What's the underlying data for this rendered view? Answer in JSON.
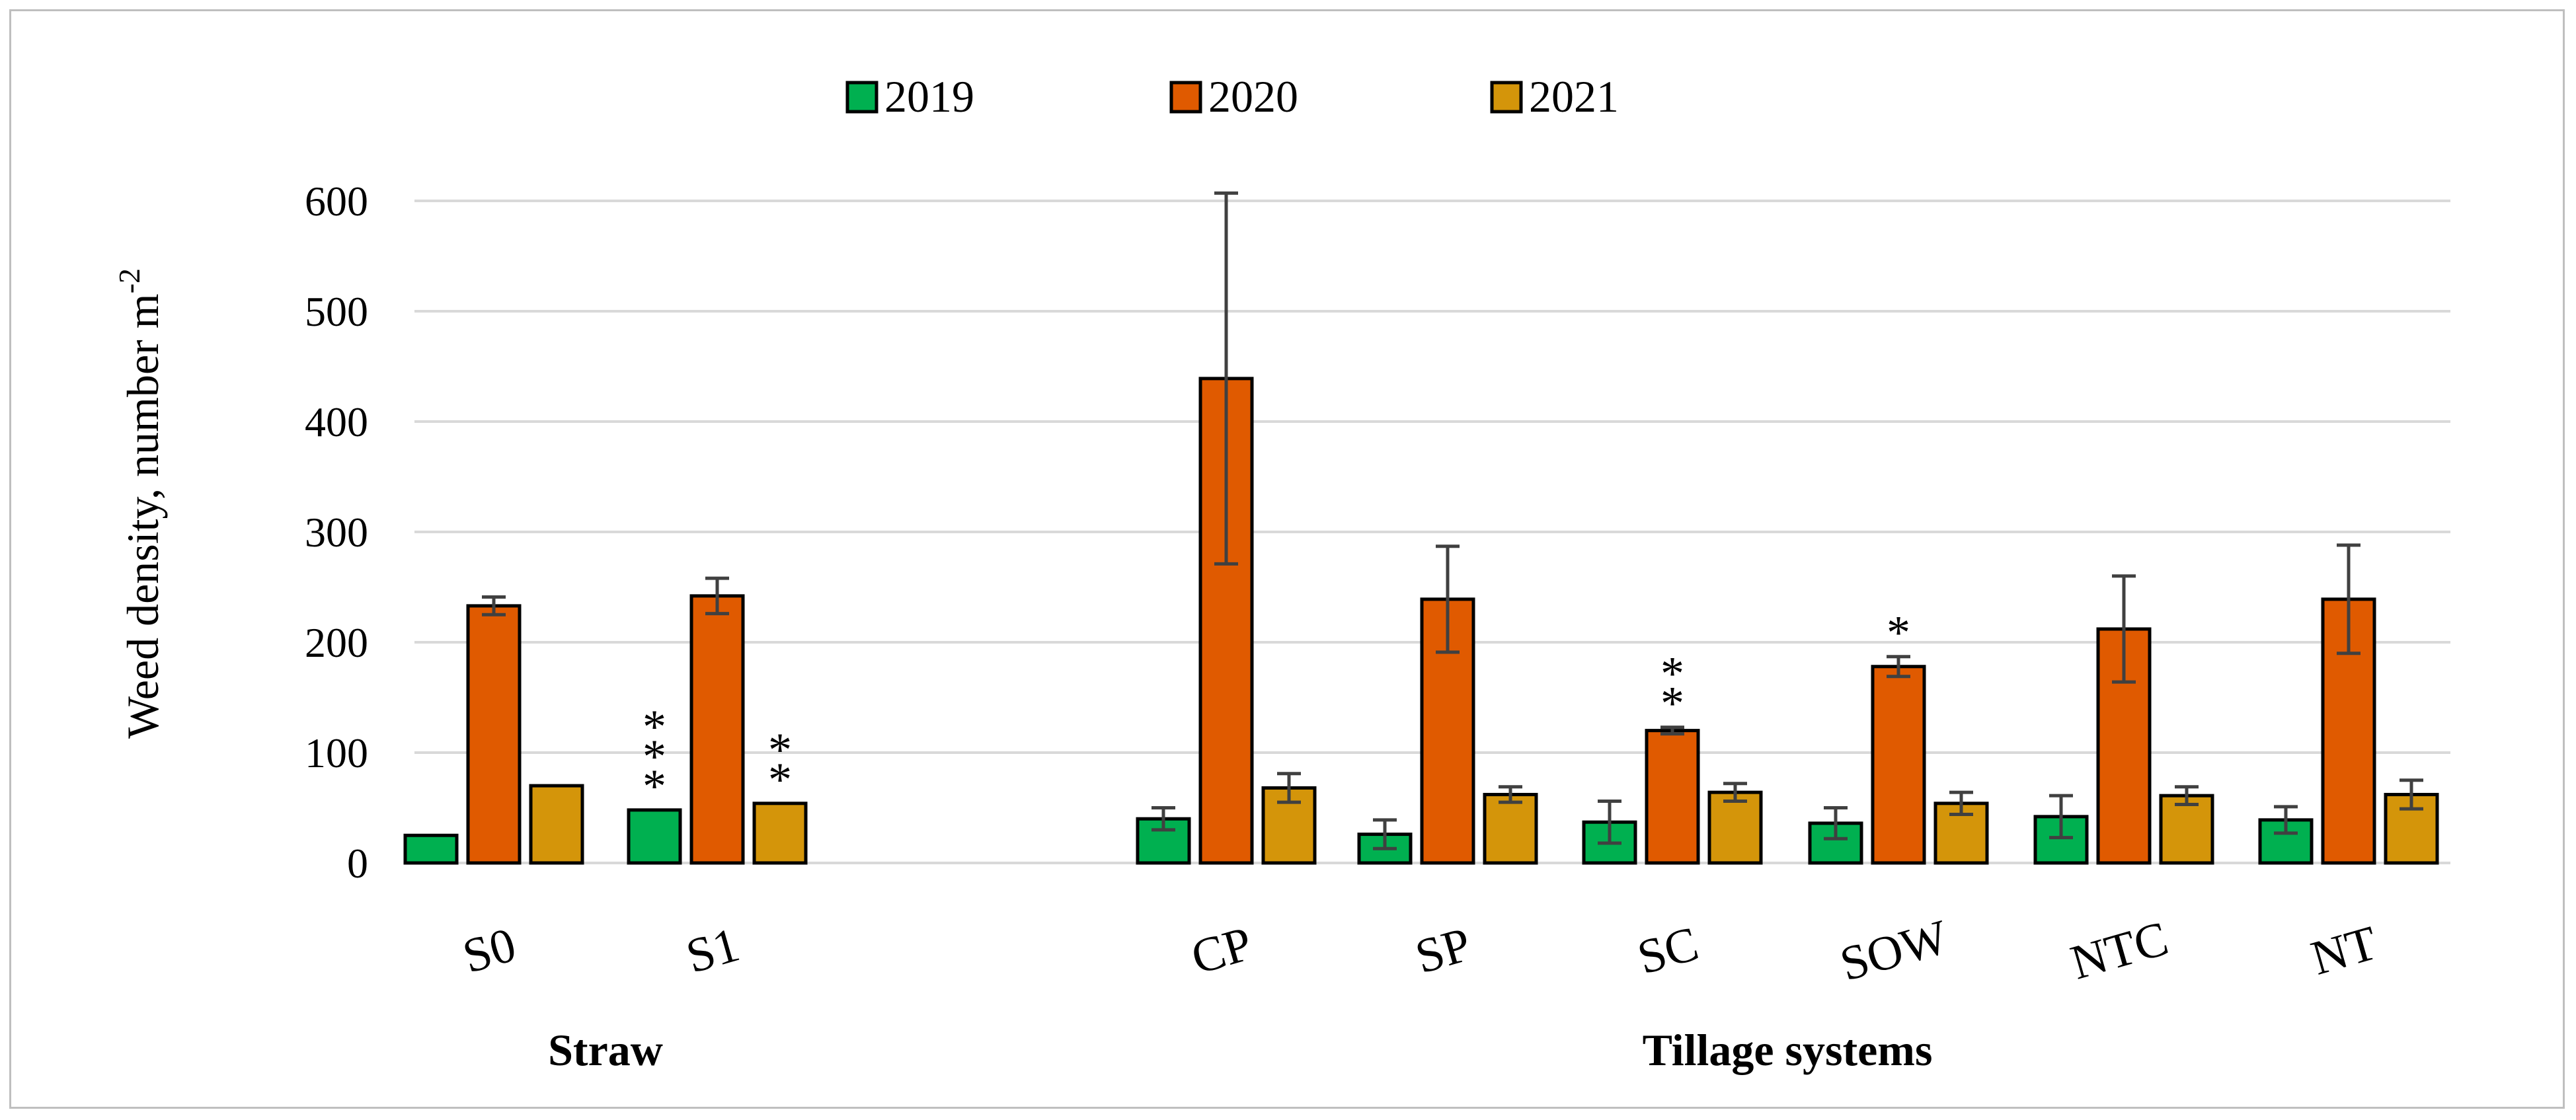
{
  "chart_data": {
    "type": "bar",
    "title": "",
    "xlabel": "",
    "ylabel": "Weed density, number m",
    "ylabel_superscript": "-2",
    "ylim": [
      0,
      600
    ],
    "yticks": [
      0,
      100,
      200,
      300,
      400,
      500,
      600
    ],
    "grid": true,
    "legend_position": "top-center",
    "categories": [
      "S0",
      "S1",
      "CP",
      "SP",
      "SC",
      "SOW",
      "NTC",
      "NT"
    ],
    "groups": [
      {
        "label": "Straw",
        "categories": [
          "S0",
          "S1"
        ]
      },
      {
        "label": "Tillage systems",
        "categories": [
          "CP",
          "SP",
          "SC",
          "SOW",
          "NTC",
          "NT"
        ]
      }
    ],
    "series": [
      {
        "name": "2019",
        "color": "#00b050",
        "values": [
          25,
          48,
          40,
          26,
          37,
          36,
          42,
          39
        ],
        "errors": [
          0,
          0,
          10,
          13,
          19,
          14,
          19,
          12
        ]
      },
      {
        "name": "2020",
        "color": "#e05a00",
        "values": [
          233,
          242,
          439,
          239,
          120,
          178,
          212,
          239
        ],
        "errors": [
          8,
          16,
          168,
          48,
          3,
          9,
          48,
          49
        ]
      },
      {
        "name": "2021",
        "color": "#d4950a",
        "values": [
          70,
          54,
          68,
          62,
          64,
          54,
          61,
          62
        ],
        "errors": [
          0,
          0,
          13,
          7,
          8,
          10,
          8,
          13
        ]
      }
    ],
    "annotations": [
      {
        "category": "S1",
        "series": "2019",
        "text": "***"
      },
      {
        "category": "S1",
        "series": "2021",
        "text": "**"
      },
      {
        "category": "SC",
        "series": "2020",
        "text": "**"
      },
      {
        "category": "SOW",
        "series": "2020",
        "text": "*"
      }
    ]
  }
}
